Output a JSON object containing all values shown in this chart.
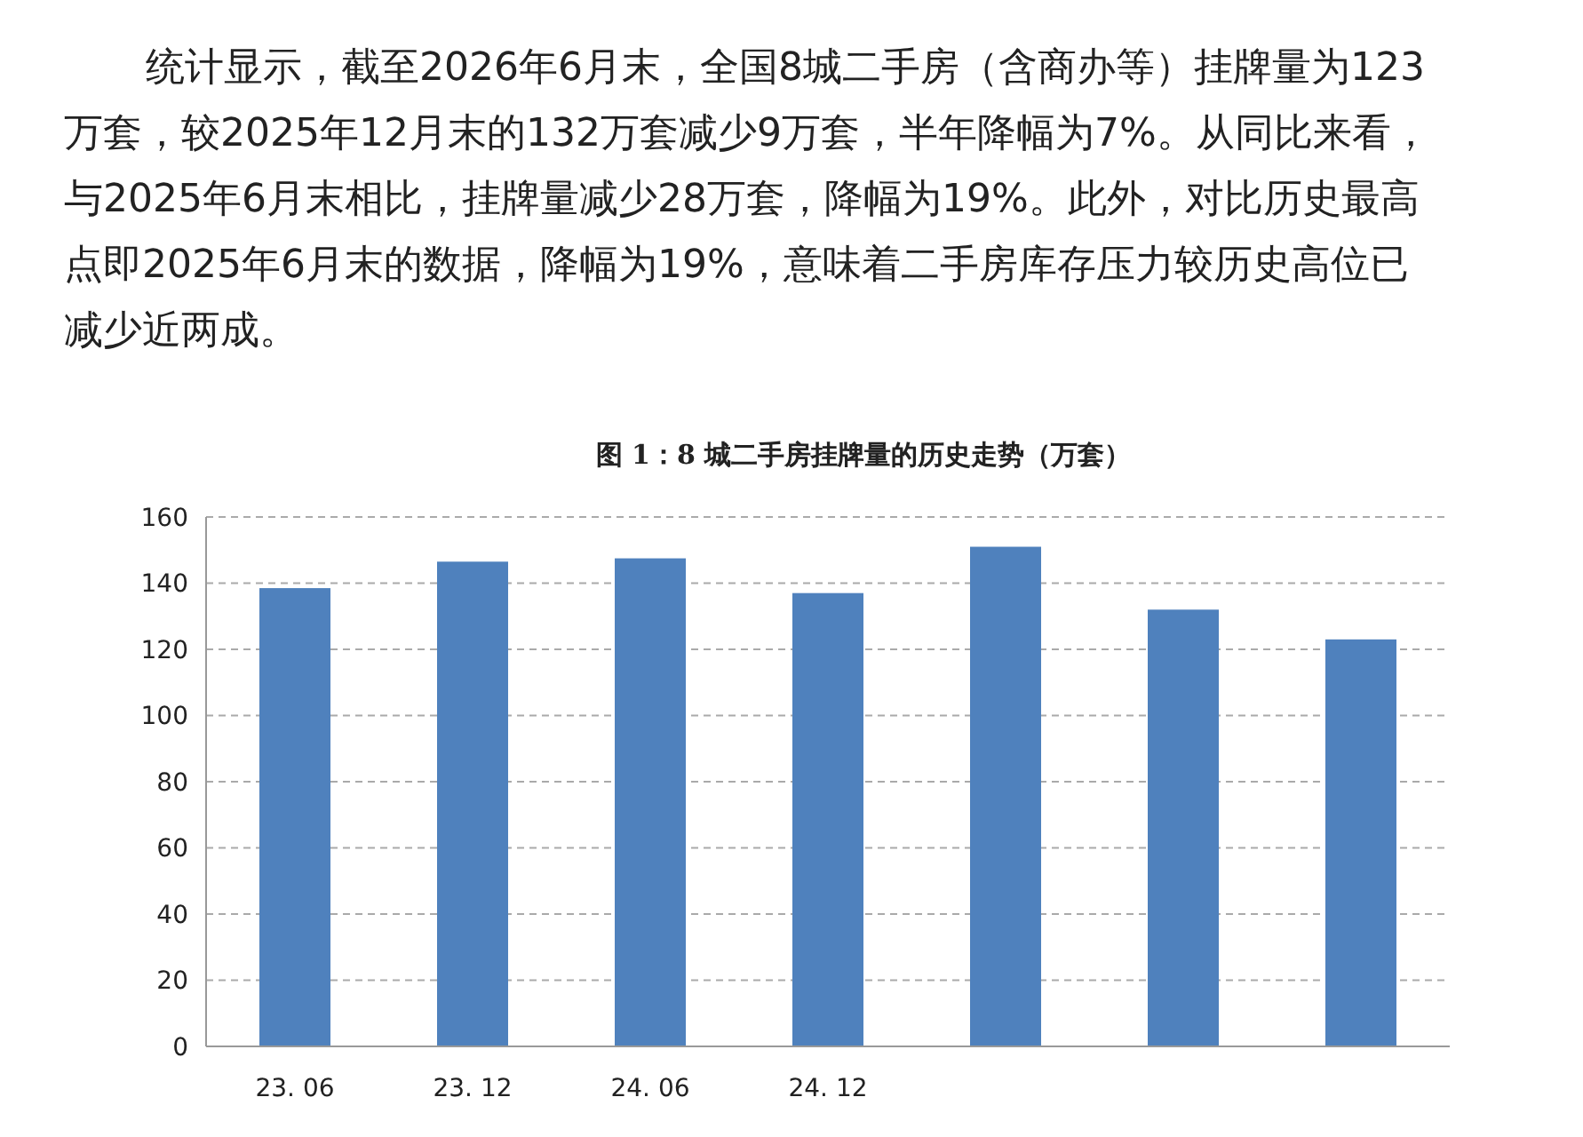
{
  "chart_data": {
    "type": "bar",
    "title": "图 1：8 城二手房挂牌量的历史走势（万套）",
    "annotations": [
      "统计显示，截至2026年6月末，全国8城二手房（含商办等）挂牌量为123",
      "万套，较2025年12月末的132万套减少9万套，半年降幅为7%。从同比来看，",
      "与2025年6月末相比，挂牌量减少28万套，降幅为19%。此外，对比历史最高",
      "点即2025年6月末的数据，降幅为19%，意味着二手房库存压力较历史高位已",
      "减少近两成。"
    ],
    "categories": [
      "23. 06",
      "23. 12",
      "24. 06",
      "24. 12",
      null,
      null,
      null
    ],
    "values": [
      138.5,
      146.5,
      147.5,
      137,
      151,
      132,
      123
    ],
    "color": "#4f81bd",
    "ylim": [
      0,
      160
    ],
    "yticks": [
      0,
      20,
      40,
      60,
      80,
      100,
      120,
      140,
      160
    ],
    "grid": "y"
  }
}
